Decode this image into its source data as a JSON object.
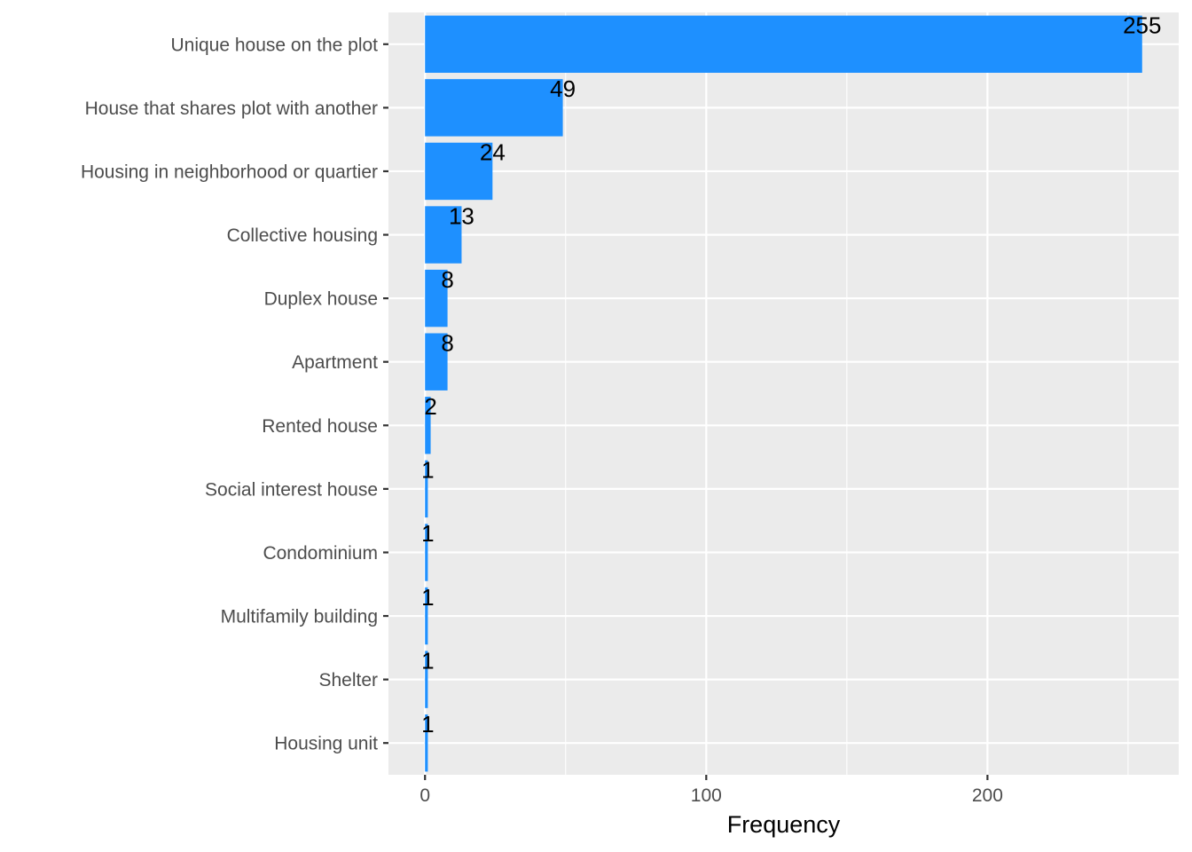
{
  "chart_data": {
    "type": "bar",
    "orientation": "horizontal",
    "categories": [
      "Unique house on the plot",
      "House that shares plot with another",
      "Housing in neighborhood or quartier",
      "Collective housing",
      "Duplex house",
      "Apartment",
      "Rented house",
      "Social interest house",
      "Condominium",
      "Multifamily building",
      "Shelter",
      "Housing unit"
    ],
    "values": [
      255,
      49,
      24,
      13,
      8,
      8,
      2,
      1,
      1,
      1,
      1,
      1
    ],
    "title": "",
    "xlabel": "Frequency",
    "ylabel": "",
    "xlim": [
      -13,
      268
    ],
    "x_ticks": [
      0,
      100,
      200
    ],
    "x_tick_labels": [
      "0",
      "100",
      "200"
    ],
    "data_labels": true,
    "grid": true,
    "legend": "none",
    "colors": {
      "bar": "#1e90ff",
      "panel_background": "#ebebeb",
      "grid": "#ffffff",
      "text": "#4d4d4d"
    }
  }
}
